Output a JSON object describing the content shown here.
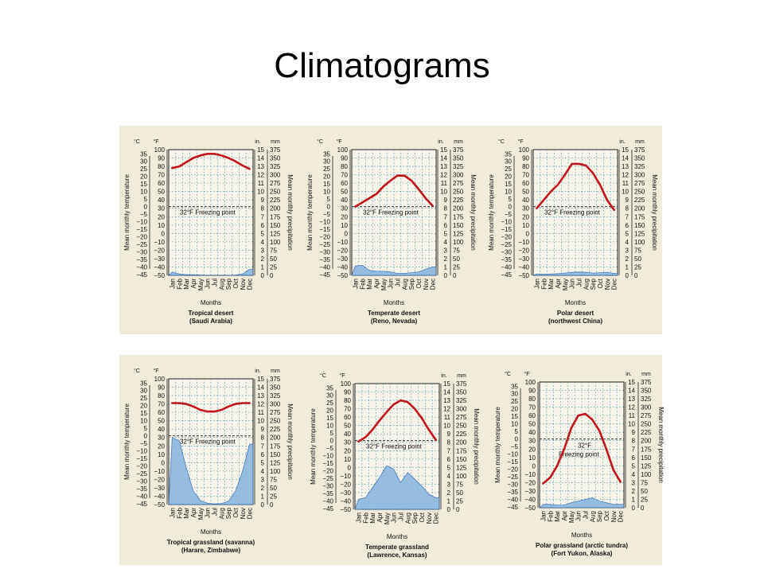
{
  "slide": {
    "title": "Climatograms"
  },
  "labels": {
    "celsius": "°C",
    "fahrenheit": "°F",
    "inches": "in.",
    "millimeters": "mm",
    "left_axis_title": "Mean monthly temperature",
    "right_axis_title": "Mean monthly precipitation",
    "x_axis_title": "Months",
    "freezing": "32°F Freezing point",
    "freezing_short_1": "32°F",
    "freezing_short_2": "Freezing point"
  },
  "colors": {
    "temperature_line": "#c0161c",
    "precipitation_fill": "#8cb6e0",
    "precipitation_edge": "#3a72b8",
    "grid": "#2f86a8",
    "paper": "#f1ebd9"
  },
  "scales": {
    "celsius_ticks": [
      "35",
      "30",
      "25",
      "20",
      "15",
      "10",
      "5",
      "0",
      "−5",
      "−10",
      "−15",
      "−20",
      "−25",
      "−30",
      "−35",
      "−40",
      "−45"
    ],
    "fahrenheit_ticks": [
      "100",
      "90",
      "80",
      "70",
      "60",
      "50",
      "40",
      "30",
      "20",
      "10",
      "0",
      "−10",
      "−20",
      "−30",
      "−40",
      "−50"
    ],
    "inch_ticks": [
      "15",
      "14",
      "13",
      "12",
      "11",
      "10",
      "9",
      "8",
      "7",
      "6",
      "5",
      "4",
      "3",
      "2",
      "1",
      "0"
    ],
    "mm_ticks": [
      "375",
      "350",
      "325",
      "300",
      "275",
      "250",
      "225",
      "200",
      "175",
      "150",
      "125",
      "100",
      "75",
      "50",
      "25",
      "0"
    ],
    "months": [
      "Jan",
      "Feb",
      "Mar",
      "Apr",
      "May",
      "Jun",
      "Jul",
      "Aug",
      "Sep",
      "Oct",
      "Nov",
      "Dec"
    ]
  },
  "chart_data": [
    {
      "type": "line",
      "title": "Tropical desert",
      "subtitle": "(Saudi Arabia)",
      "x": [
        "Jan",
        "Feb",
        "Mar",
        "Apr",
        "May",
        "Jun",
        "Jul",
        "Aug",
        "Sep",
        "Oct",
        "Nov",
        "Dec"
      ],
      "temperature_f": [
        78,
        80,
        85,
        90,
        93,
        95,
        95,
        93,
        90,
        86,
        81,
        77
      ],
      "precipitation_mm": [
        10,
        4,
        2,
        2,
        1,
        0,
        0,
        0,
        0,
        1,
        4,
        18
      ],
      "freezing_label": "full"
    },
    {
      "type": "line",
      "title": "Temperate desert",
      "subtitle": "(Reno, Nevada)",
      "x": [
        "Jan",
        "Feb",
        "Mar",
        "Apr",
        "May",
        "Jun",
        "Jul",
        "Aug",
        "Sep",
        "Oct",
        "Nov",
        "Dec"
      ],
      "temperature_f": [
        32,
        37,
        42,
        47,
        56,
        63,
        69,
        69,
        63,
        53,
        42,
        33
      ],
      "precipitation_mm": [
        28,
        30,
        15,
        12,
        12,
        10,
        6,
        6,
        8,
        10,
        18,
        25
      ],
      "freezing_label": "full"
    },
    {
      "type": "line",
      "title": "Polar desert",
      "subtitle": "(northwest China)",
      "x": [
        "Jan",
        "Feb",
        "Mar",
        "Apr",
        "May",
        "Jun",
        "Jul",
        "Aug",
        "Sep",
        "Oct",
        "Nov",
        "Dec"
      ],
      "temperature_f": [
        30,
        40,
        50,
        58,
        70,
        83,
        83,
        81,
        72,
        58,
        40,
        28
      ],
      "precipitation_mm": [
        4,
        3,
        4,
        5,
        7,
        9,
        10,
        9,
        7,
        8,
        9,
        6
      ],
      "freezing_label": "full"
    },
    {
      "type": "line",
      "title": "Tropical grassland (savanna)",
      "subtitle": "(Harare, Zimbabwe)",
      "x": [
        "Jan",
        "Feb",
        "Mar",
        "Apr",
        "May",
        "Jun",
        "Jul",
        "Aug",
        "Sep",
        "Oct",
        "Nov",
        "Dec"
      ],
      "temperature_f": [
        71,
        71,
        70,
        67,
        63,
        61,
        61,
        63,
        67,
        70,
        71,
        71
      ],
      "precipitation_mm": [
        200,
        190,
        110,
        40,
        12,
        4,
        2,
        3,
        10,
        40,
        100,
        180
      ],
      "freezing_label": "full"
    },
    {
      "type": "line",
      "title": "Temperate grassland",
      "subtitle": "(Lawrence, Kansas)",
      "x": [
        "Jan",
        "Feb",
        "Mar",
        "Apr",
        "May",
        "Jun",
        "Jul",
        "Aug",
        "Sep",
        "Oct",
        "Nov",
        "Dec"
      ],
      "temperature_f": [
        31,
        36,
        45,
        56,
        66,
        75,
        80,
        78,
        70,
        59,
        45,
        33
      ],
      "precipitation_mm": [
        30,
        35,
        65,
        95,
        130,
        120,
        80,
        110,
        90,
        70,
        45,
        35
      ],
      "freezing_label": "full"
    },
    {
      "type": "line",
      "title": "Polar grassland (arctic tundra)",
      "subtitle": "(Fort Yukon, Alaska)",
      "x": [
        "Jan",
        "Feb",
        "Mar",
        "Apr",
        "May",
        "Jun",
        "Jul",
        "Aug",
        "Sep",
        "Oct",
        "Nov",
        "Dec"
      ],
      "temperature_f": [
        -21,
        -14,
        0,
        20,
        45,
        60,
        62,
        55,
        42,
        20,
        -5,
        -19
      ],
      "precipitation_mm": [
        10,
        10,
        8,
        8,
        15,
        20,
        25,
        30,
        20,
        15,
        10,
        10
      ],
      "freezing_label": "split"
    }
  ]
}
